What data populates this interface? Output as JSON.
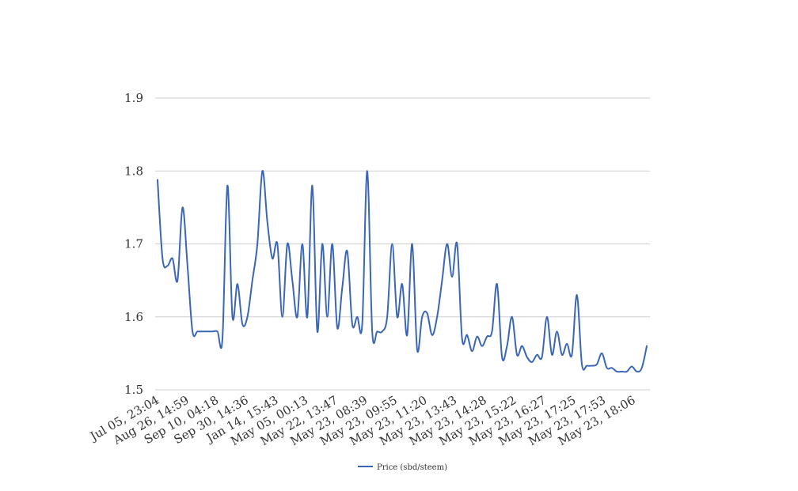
{
  "chart_data": {
    "type": "line",
    "title": "",
    "xlabel": "",
    "ylabel": "",
    "ylim": [
      1.5,
      1.9
    ],
    "yticks": [
      "1.5",
      "1.6",
      "1.7",
      "1.8",
      "1.9"
    ],
    "grid": true,
    "legend_position": "bottom-center",
    "x_tick_labels": [
      "Jul 05, 23:04",
      "Aug 26, 14:59",
      "Sep 10, 04:18",
      "Sep 30, 14:36",
      "Jan 14, 15:43",
      "May 05, 00:13",
      "May 22, 13:47",
      "May 23, 08:39",
      "May 23, 09:55",
      "May 23, 11:20",
      "May 23, 13:43",
      "May 23, 14:28",
      "May 23, 15:22",
      "May 23, 16:27",
      "May 23, 17:25",
      "May 23, 17:53",
      "May 23, 18:06"
    ],
    "series": [
      {
        "name": "Price (sbd/steem)",
        "color": "#3a66b5",
        "values": [
          1.788,
          1.68,
          1.67,
          1.68,
          1.65,
          1.75,
          1.67,
          1.58,
          1.58,
          1.58,
          1.58,
          1.58,
          1.58,
          1.57,
          1.78,
          1.6,
          1.645,
          1.59,
          1.6,
          1.65,
          1.7,
          1.8,
          1.73,
          1.68,
          1.7,
          1.6,
          1.7,
          1.65,
          1.6,
          1.7,
          1.6,
          1.78,
          1.58,
          1.7,
          1.6,
          1.7,
          1.585,
          1.64,
          1.69,
          1.59,
          1.6,
          1.59,
          1.8,
          1.58,
          1.58,
          1.58,
          1.6,
          1.7,
          1.6,
          1.645,
          1.575,
          1.7,
          1.555,
          1.6,
          1.605,
          1.575,
          1.6,
          1.65,
          1.7,
          1.655,
          1.7,
          1.57,
          1.575,
          1.553,
          1.573,
          1.56,
          1.573,
          1.58,
          1.645,
          1.545,
          1.56,
          1.6,
          1.548,
          1.56,
          1.545,
          1.538,
          1.548,
          1.545,
          1.6,
          1.548,
          1.58,
          1.548,
          1.563,
          1.548,
          1.63,
          1.535,
          1.533,
          1.533,
          1.535,
          1.55,
          1.53,
          1.53,
          1.525,
          1.525,
          1.525,
          1.532,
          1.525,
          1.53,
          1.56
        ]
      }
    ]
  }
}
